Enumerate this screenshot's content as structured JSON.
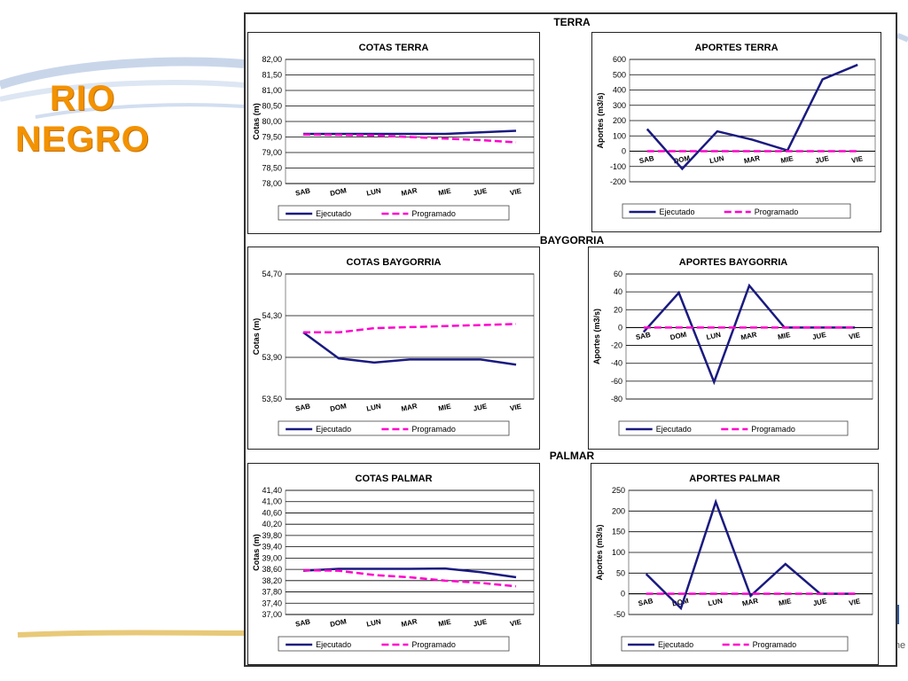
{
  "slide": {
    "title_lines": [
      "RIO",
      "NEGRO"
    ],
    "accent": "#f39200",
    "logo_fragment": "une"
  },
  "sections": [
    "TERRA",
    "BAYGORRIA",
    "PALMAR"
  ],
  "legend": {
    "executed": "Ejecutado",
    "programmed": "Programado"
  },
  "colors": {
    "executed": "#1a1a80",
    "programmed": "#ff00cc"
  },
  "chart_data": [
    {
      "id": "cotas-terra",
      "type": "line",
      "title": "COTAS TERRA",
      "ylabel": "Cotas (m)",
      "xlabel": "",
      "categories": [
        "SAB",
        "DOM",
        "LUN",
        "MAR",
        "MIE",
        "JUE",
        "VIE"
      ],
      "ylim": [
        78.0,
        82.0
      ],
      "yticks": [
        "78,00",
        "78,50",
        "79,00",
        "79,50",
        "80,00",
        "80,50",
        "81,00",
        "81,50",
        "82,00"
      ],
      "ytick_values": [
        78.0,
        78.5,
        79.0,
        79.5,
        80.0,
        80.5,
        81.0,
        81.5,
        82.0
      ],
      "series": [
        {
          "name": "Ejecutado",
          "values": [
            79.6,
            79.6,
            79.6,
            79.6,
            79.6,
            79.65,
            79.7
          ]
        },
        {
          "name": "Programado",
          "values": [
            79.58,
            79.57,
            79.55,
            79.5,
            79.45,
            79.4,
            79.33
          ]
        }
      ]
    },
    {
      "id": "aportes-terra",
      "type": "line",
      "title": "APORTES TERRA",
      "ylabel": "Aportes (m3/s)",
      "xlabel": "",
      "categories": [
        "SAB",
        "DOM",
        "LUN",
        "MAR",
        "MIE",
        "JUE",
        "VIE"
      ],
      "ylim": [
        -200,
        600
      ],
      "yticks": [
        "-200",
        "-100",
        "0",
        "100",
        "200",
        "300",
        "400",
        "500",
        "600"
      ],
      "ytick_values": [
        -200,
        -100,
        0,
        100,
        200,
        300,
        400,
        500,
        600
      ],
      "series": [
        {
          "name": "Ejecutado",
          "values": [
            145,
            -115,
            130,
            75,
            5,
            470,
            565
          ]
        },
        {
          "name": "Programado",
          "values": [
            0,
            0,
            0,
            0,
            0,
            0,
            0
          ]
        }
      ]
    },
    {
      "id": "cotas-baygorria",
      "type": "line",
      "title": "COTAS BAYGORRIA",
      "ylabel": "Cotas (m)",
      "xlabel": "",
      "categories": [
        "SAB",
        "DOM",
        "LUN",
        "MAR",
        "MIE",
        "JUE",
        "VIE"
      ],
      "ylim": [
        53.5,
        54.7
      ],
      "yticks": [
        "53,50",
        "53,90",
        "54,30",
        "54,70"
      ],
      "ytick_values": [
        53.5,
        53.9,
        54.3,
        54.7
      ],
      "series": [
        {
          "name": "Ejecutado",
          "values": [
            54.14,
            53.89,
            53.85,
            53.88,
            53.88,
            53.88,
            53.83
          ]
        },
        {
          "name": "Programado",
          "values": [
            54.14,
            54.14,
            54.18,
            54.19,
            54.2,
            54.21,
            54.22
          ]
        }
      ]
    },
    {
      "id": "aportes-baygorria",
      "type": "line",
      "title": "APORTES BAYGORRIA",
      "ylabel": "Aportes (m3/s)",
      "xlabel": "",
      "categories": [
        "SAB",
        "DOM",
        "LUN",
        "MAR",
        "MIE",
        "JUE",
        "VIE"
      ],
      "ylim": [
        -80,
        60
      ],
      "yticks": [
        "-80",
        "-60",
        "-40",
        "-20",
        "0",
        "20",
        "40",
        "60"
      ],
      "ytick_values": [
        -80,
        -60,
        -40,
        -20,
        0,
        20,
        40,
        60
      ],
      "series": [
        {
          "name": "Ejecutado",
          "values": [
            -5,
            39,
            -61,
            47,
            0,
            0,
            0
          ]
        },
        {
          "name": "Programado",
          "values": [
            0,
            0,
            0,
            0,
            0,
            0,
            0
          ]
        }
      ]
    },
    {
      "id": "cotas-palmar",
      "type": "line",
      "title": "COTAS PALMAR",
      "ylabel": "Cotas (m)",
      "xlabel": "",
      "categories": [
        "SAB",
        "DOM",
        "LUN",
        "MAR",
        "MIE",
        "JUE",
        "VIE"
      ],
      "ylim": [
        37.0,
        41.4
      ],
      "yticks": [
        "37,00",
        "37,40",
        "37,80",
        "38,20",
        "38,60",
        "39,00",
        "39,40",
        "39,80",
        "40,20",
        "40,60",
        "41,00",
        "41,40"
      ],
      "ytick_values": [
        37.0,
        37.4,
        37.8,
        38.2,
        38.6,
        39.0,
        39.4,
        39.8,
        40.2,
        40.6,
        41.0,
        41.4
      ],
      "series": [
        {
          "name": "Ejecutado",
          "values": [
            38.55,
            38.62,
            38.62,
            38.62,
            38.63,
            38.5,
            38.32
          ]
        },
        {
          "name": "Programado",
          "values": [
            38.57,
            38.55,
            38.4,
            38.32,
            38.2,
            38.12,
            38.0
          ]
        }
      ]
    },
    {
      "id": "aportes-palmar",
      "type": "line",
      "title": "APORTES PALMAR",
      "ylabel": "Aportes (m3/s)",
      "xlabel": "",
      "categories": [
        "SAB",
        "DOM",
        "LUN",
        "MAR",
        "MIE",
        "JUE",
        "VIE"
      ],
      "ylim": [
        -50,
        250
      ],
      "yticks": [
        "-50",
        "0",
        "50",
        "100",
        "150",
        "200",
        "250"
      ],
      "ytick_values": [
        -50,
        0,
        50,
        100,
        150,
        200,
        250
      ],
      "series": [
        {
          "name": "Ejecutado",
          "values": [
            48,
            -35,
            222,
            -5,
            72,
            0,
            0
          ]
        },
        {
          "name": "Programado",
          "values": [
            0,
            0,
            0,
            0,
            0,
            0,
            0
          ]
        }
      ]
    }
  ]
}
